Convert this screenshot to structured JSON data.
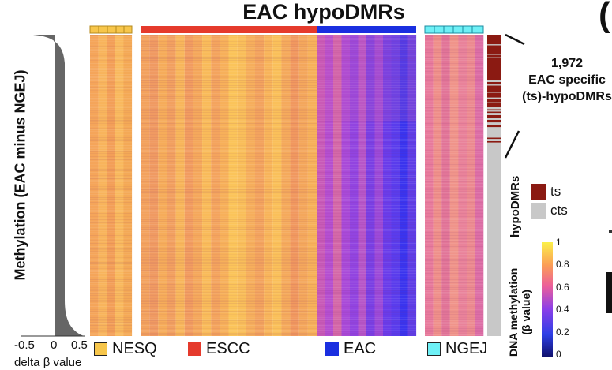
{
  "title": "EAC hypoDMRs",
  "y_axis_label": "Methylation (EAC minus NGEJ)",
  "delta": {
    "ticks": [
      "-0.5",
      "0",
      "0.5"
    ],
    "label": "delta β value"
  },
  "groups": [
    {
      "name": "NESQ",
      "color": "#f7c64b"
    },
    {
      "name": "ESCC",
      "color": "#e53a2c"
    },
    {
      "name": "EAC",
      "color": "#1a2fe0"
    },
    {
      "name": "NGEJ",
      "color": "#6ef0f6"
    }
  ],
  "annotation": {
    "count": "1,972",
    "line2": "EAC specific",
    "line3": "(ts)-hypoDMRs"
  },
  "dmr_legend": {
    "title": "hypoDMRs",
    "items": [
      {
        "label": "ts",
        "color": "#8b1a12"
      },
      {
        "label": "cts",
        "color": "#c8c8c8"
      }
    ]
  },
  "colorbar": {
    "title_line1": "DNA methylation",
    "title_line2": "(β value)",
    "ticks": [
      "1",
      "0.8",
      "0.6",
      "0.4",
      "0.2",
      "0"
    ]
  },
  "colors": {
    "density": "#666666",
    "ts": "#8b1a12",
    "cts": "#c8c8c8"
  }
}
